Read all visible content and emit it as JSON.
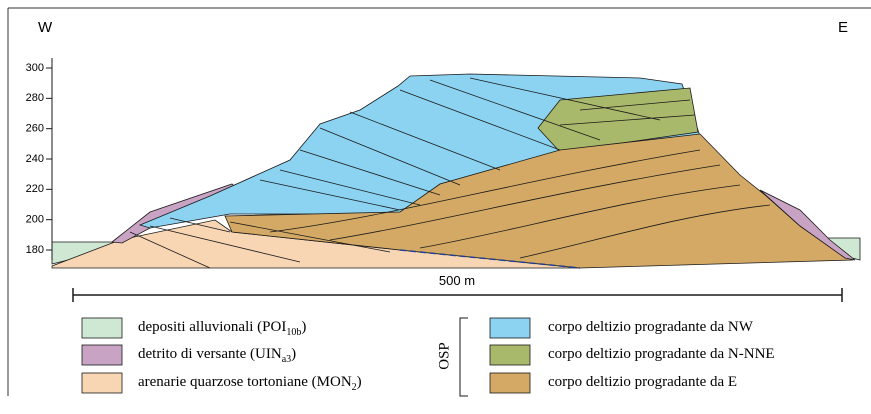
{
  "labels": {
    "west": "W",
    "east": "E"
  },
  "axis": {
    "yticks": [
      180,
      200,
      220,
      240,
      260,
      280,
      300
    ]
  },
  "scale_bar": "500 m",
  "legend": {
    "group": "OSP",
    "left": [
      {
        "text": "depositi alluvionali (POI",
        "sub": "10b",
        "after": ")",
        "color": "#cfe8d3"
      },
      {
        "text": "detrito di versante (UIN",
        "sub": "a3",
        "after": ")",
        "color": "#c8a3c3"
      },
      {
        "text": "arenarie quarzose tortoniane (MON",
        "sub": "2",
        "after": ")",
        "color": "#f8d6b4"
      }
    ],
    "right": [
      {
        "text": "corpo deltizio progradante da NW",
        "color": "#8bd3f1"
      },
      {
        "text": "corpo deltizio progradante da N-NNE",
        "color": "#a8b96b"
      },
      {
        "text": "corpo deltizio progradante da E",
        "color": "#d3a965"
      }
    ]
  }
}
